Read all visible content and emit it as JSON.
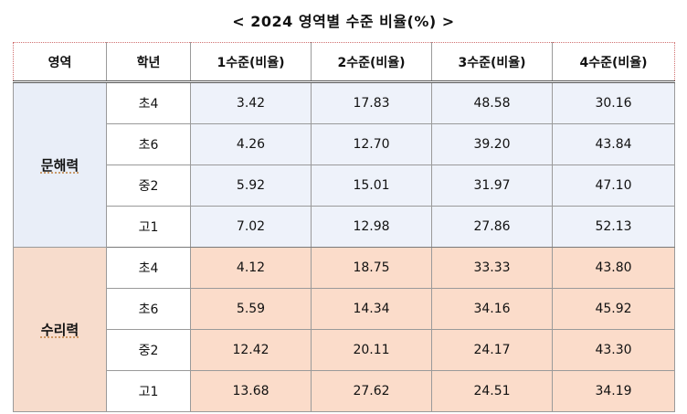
{
  "title": "< 2024 영역별 수준 비율(%) >",
  "headers": [
    "영역",
    "학년",
    "1수준(비율)",
    "2수준(비율)",
    "3수준(비율)",
    "4수준(비율)"
  ],
  "groups": [
    {
      "area": "문해력",
      "rows": [
        {
          "grade": "초4",
          "values": [
            "3.42",
            "17.83",
            "48.58",
            "30.16"
          ]
        },
        {
          "grade": "초6",
          "values": [
            "4.26",
            "12.70",
            "39.20",
            "43.84"
          ]
        },
        {
          "grade": "중2",
          "values": [
            "5.92",
            "15.01",
            "31.97",
            "47.10"
          ]
        },
        {
          "grade": "고1",
          "values": [
            "7.02",
            "12.98",
            "27.86",
            "52.13"
          ]
        }
      ]
    },
    {
      "area": "수리력",
      "rows": [
        {
          "grade": "초4",
          "values": [
            "4.12",
            "18.75",
            "33.33",
            "43.80"
          ]
        },
        {
          "grade": "초6",
          "values": [
            "5.59",
            "14.34",
            "34.16",
            "45.92"
          ]
        },
        {
          "grade": "중2",
          "values": [
            "12.42",
            "20.11",
            "24.17",
            "43.30"
          ]
        },
        {
          "grade": "고1",
          "values": [
            "13.68",
            "27.62",
            "24.51",
            "34.19"
          ]
        }
      ]
    }
  ],
  "colors": {
    "literacy_bg": "#eef2fa",
    "numeracy_bg": "#fbdcca"
  }
}
